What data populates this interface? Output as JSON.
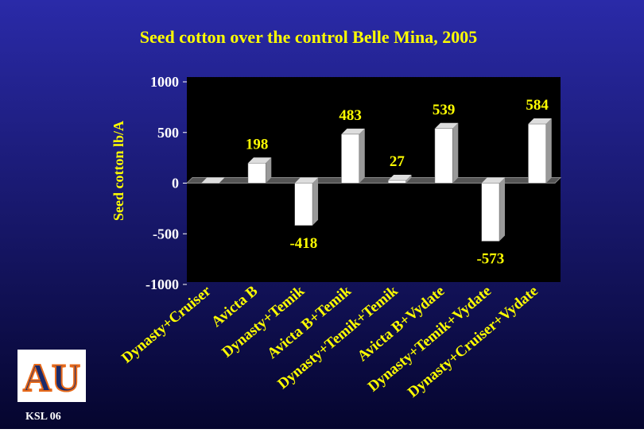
{
  "chart_data": {
    "type": "bar",
    "title": "Seed cotton over the control Belle Mina, 2005",
    "y_label": "Seed cotton lb/A",
    "categories": [
      "Dynasty+Cruiser",
      "Avicta B",
      "Dynasty+Temik",
      "Avicta B+Temik",
      "Dynasty+Temik+Temik",
      "Avicta B+Vydate",
      "Dynasty+Temik+Vydate",
      "Dynasty+Cruiser+Vydate"
    ],
    "values": [
      0,
      198,
      -418,
      483,
      27,
      539,
      -573,
      584
    ],
    "color": "#ffffff",
    "label_color": "#ffff00",
    "ylim": [
      -1000,
      1000
    ],
    "yticks": [
      1000,
      500,
      0,
      -500,
      -1000
    ],
    "grid": false
  },
  "footer": "KSL 06",
  "logo_text": "AU"
}
